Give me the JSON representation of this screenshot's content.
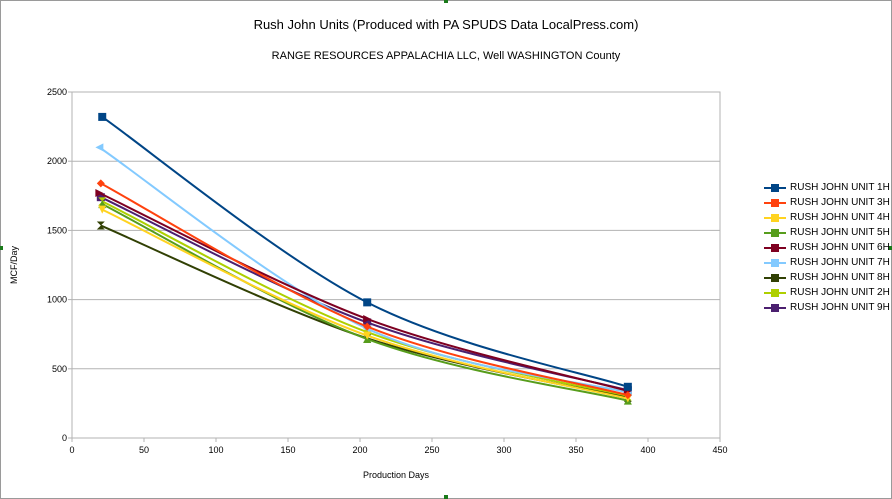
{
  "chart_data": {
    "type": "line",
    "title": "Rush John Units (Produced with PA SPUDS Data LocalPress.com)",
    "subtitle": "RANGE RESOURCES APPALACHIA LLC, Well  WASHINGTON County",
    "xlabel": "Production Days",
    "ylabel": "MCF/Day",
    "xlim": [
      0,
      450
    ],
    "ylim": [
      0,
      2500
    ],
    "xticks": [
      0,
      50,
      100,
      150,
      200,
      250,
      300,
      350,
      400,
      450
    ],
    "yticks": [
      0,
      500,
      1000,
      1500,
      2000,
      2500
    ],
    "grid": "horizontal",
    "legend_position": "right",
    "series": [
      {
        "name": "RUSH JOHN UNIT 1H",
        "color": "#004586",
        "marker": "square",
        "x": [
          21,
          205,
          386
        ],
        "y": [
          2320,
          980,
          370
        ]
      },
      {
        "name": "RUSH JOHN UNIT 3H",
        "color": "#ff420e",
        "marker": "diamond",
        "x": [
          20,
          205,
          386
        ],
        "y": [
          1840,
          805,
          310
        ]
      },
      {
        "name": "RUSH JOHN UNIT 4H",
        "color": "#ffd320",
        "marker": "triangle-down",
        "x": [
          21,
          205,
          386
        ],
        "y": [
          1650,
          740,
          285
        ]
      },
      {
        "name": "RUSH JOHN UNIT 5H",
        "color": "#579d1c",
        "marker": "triangle-up",
        "x": [
          21,
          205,
          386
        ],
        "y": [
          1690,
          715,
          270
        ]
      },
      {
        "name": "RUSH JOHN UNIT 6H",
        "color": "#7e0021",
        "marker": "triangle-right",
        "x": [
          19,
          205,
          386
        ],
        "y": [
          1770,
          860,
          340
        ]
      },
      {
        "name": "RUSH JOHN UNIT 7H",
        "color": "#83caff",
        "marker": "triangle-left",
        "x": [
          19,
          205,
          386
        ],
        "y": [
          2100,
          790,
          330
        ]
      },
      {
        "name": "RUSH JOHN UNIT 8H",
        "color": "#314004",
        "marker": "bowtie",
        "x": [
          20,
          205,
          386
        ],
        "y": [
          1535,
          720,
          290
        ]
      },
      {
        "name": "RUSH JOHN UNIT 2H",
        "color": "#aecf00",
        "marker": "hourglass",
        "x": [
          21,
          205,
          386
        ],
        "y": [
          1710,
          765,
          300
        ]
      },
      {
        "name": "RUSH JOHN UNIT 9H",
        "color": "#4b1f6f",
        "marker": "square",
        "x": [
          20,
          205,
          386
        ],
        "y": [
          1740,
          835,
          345
        ]
      }
    ]
  }
}
